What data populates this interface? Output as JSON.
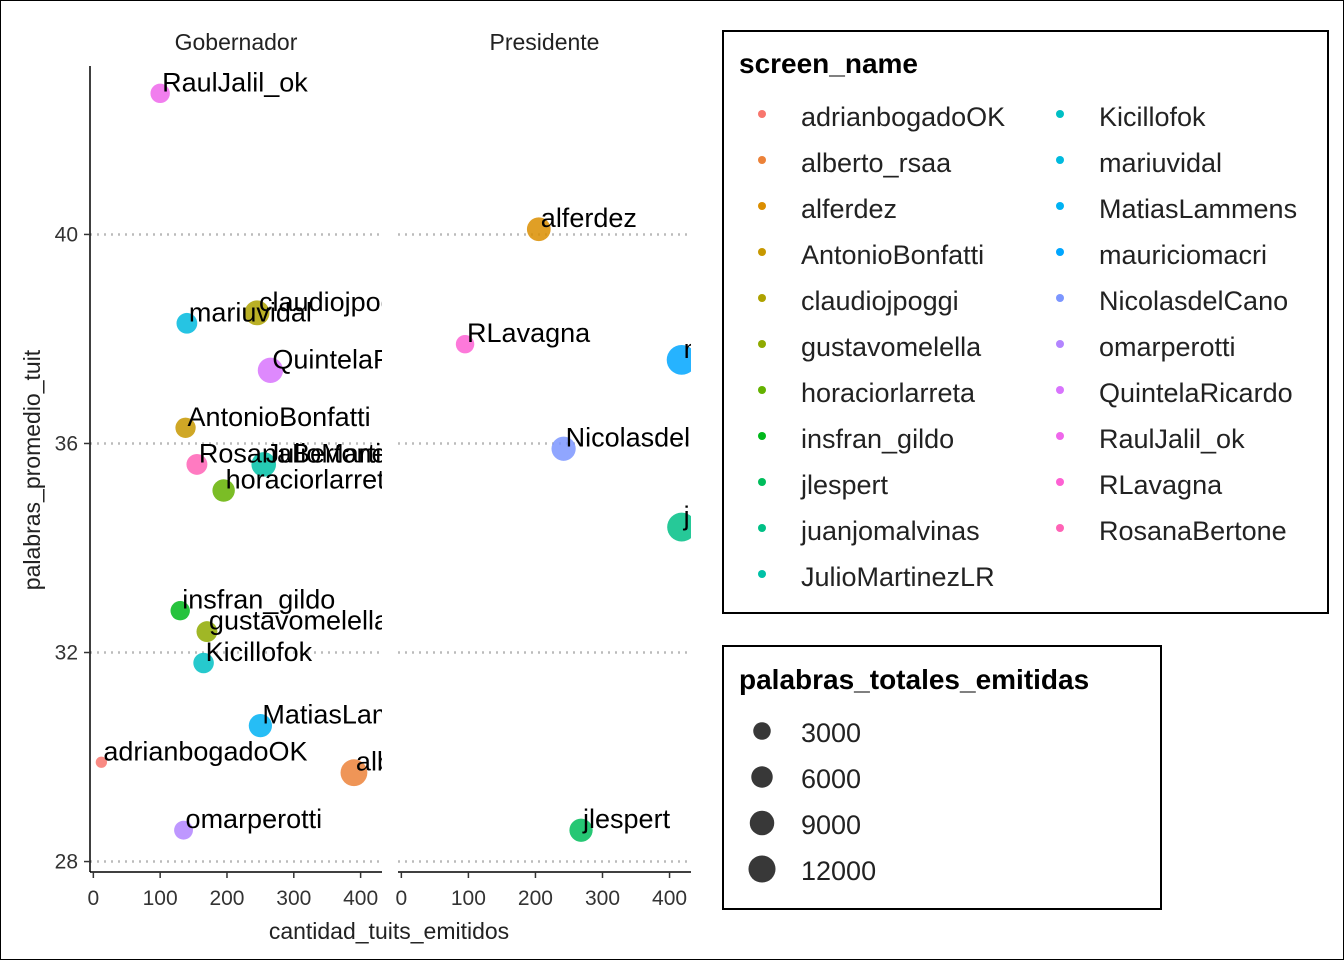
{
  "chart_data": {
    "type": "scatter",
    "xlabel": "cantidad_tuits_emitidos",
    "ylabel": "palabras_promedio_tuit",
    "xlim": [
      -5,
      432
    ],
    "ylim": [
      27.8,
      43.3
    ],
    "x_ticks": [
      0,
      100,
      200,
      300,
      400
    ],
    "x_tick_labels": [
      "0",
      "100",
      "200",
      "300",
      "400"
    ],
    "y_ticks": [
      28,
      32,
      36,
      40
    ],
    "y_tick_labels": [
      "28",
      "32",
      "36",
      "40"
    ],
    "grid": "dotted horizontal major gridlines",
    "facets": [
      "Gobernador",
      "Presidente"
    ],
    "legends": {
      "color": {
        "title": "screen_name",
        "entries": [
          {
            "name": "adrianbogadoOK",
            "color": "#F8766D"
          },
          {
            "name": "alberto_rsaa",
            "color": "#EC8239"
          },
          {
            "name": "alferdez",
            "color": "#DB8E00"
          },
          {
            "name": "AntonioBonfatti",
            "color": "#C79800"
          },
          {
            "name": "claudiojpoggi",
            "color": "#AEA200"
          },
          {
            "name": "gustavomelella",
            "color": "#8FAA00"
          },
          {
            "name": "horaciorlarreta",
            "color": "#64B200"
          },
          {
            "name": "insfran_gildo",
            "color": "#00B81B"
          },
          {
            "name": "jlespert",
            "color": "#00BD5C"
          },
          {
            "name": "juanjomalvinas",
            "color": "#00C086"
          },
          {
            "name": "JulioMartinezLR",
            "color": "#00C1A7"
          },
          {
            "name": "Kicillofok",
            "color": "#00BFC4"
          },
          {
            "name": "mariuvidal",
            "color": "#00BADE"
          },
          {
            "name": "MatiasLammens",
            "color": "#00B2F3"
          },
          {
            "name": "mauriciomacri",
            "color": "#00A6FF"
          },
          {
            "name": "NicolasdelCano",
            "color": "#7C96FF"
          },
          {
            "name": "omarperotti",
            "color": "#B385FF"
          },
          {
            "name": "QuintelaRicardo",
            "color": "#D874FD"
          },
          {
            "name": "RaulJalil_ok",
            "color": "#EF67EB"
          },
          {
            "name": "RLavagna",
            "color": "#FD61D3"
          },
          {
            "name": "RosanaBertone",
            "color": "#FF63B6"
          }
        ]
      },
      "size": {
        "title": "palabras_totales_emitidas",
        "entries": [
          {
            "label": "3000",
            "value": 3000
          },
          {
            "label": "6000",
            "value": 6000
          },
          {
            "label": "9000",
            "value": 9000
          },
          {
            "label": "12000",
            "value": 12000
          }
        ]
      }
    },
    "points": [
      {
        "facet": "Gobernador",
        "screen_name": "RaulJalil_ok",
        "x": 100,
        "y": 42.7,
        "size": 4300
      },
      {
        "facet": "Gobernador",
        "screen_name": "claudiojpoggi",
        "x": 245,
        "y": 38.5,
        "size": 9400
      },
      {
        "facet": "Gobernador",
        "screen_name": "mariuvidal",
        "x": 140,
        "y": 38.3,
        "size": 5400
      },
      {
        "facet": "Gobernador",
        "screen_name": "QuintelaRicardo",
        "x": 265,
        "y": 37.4,
        "size": 9900
      },
      {
        "facet": "Gobernador",
        "screen_name": "AntonioBonfatti",
        "x": 138,
        "y": 36.3,
        "size": 5000
      },
      {
        "facet": "Gobernador",
        "screen_name": "RosanaBertone",
        "x": 155,
        "y": 35.6,
        "size": 5500
      },
      {
        "facet": "Gobernador",
        "screen_name": "JulioMartinezLR",
        "x": 255,
        "y": 35.6,
        "size": 9100
      },
      {
        "facet": "Gobernador",
        "screen_name": "horaciorlarreta",
        "x": 195,
        "y": 35.1,
        "size": 6900
      },
      {
        "facet": "Gobernador",
        "screen_name": "insfran_gildo",
        "x": 130,
        "y": 32.8,
        "size": 4300
      },
      {
        "facet": "Gobernador",
        "screen_name": "gustavomelella",
        "x": 170,
        "y": 32.4,
        "size": 5500
      },
      {
        "facet": "Gobernador",
        "screen_name": "Kicillofok",
        "x": 165,
        "y": 31.8,
        "size": 5200
      },
      {
        "facet": "Gobernador",
        "screen_name": "MatiasLammens",
        "x": 250,
        "y": 30.6,
        "size": 7700
      },
      {
        "facet": "Gobernador",
        "screen_name": "adrianbogadoOK",
        "x": 12,
        "y": 29.9,
        "size": 360
      },
      {
        "facet": "Gobernador",
        "screen_name": "alberto_rsaa",
        "x": 390,
        "y": 29.7,
        "size": 11700
      },
      {
        "facet": "Gobernador",
        "screen_name": "omarperotti",
        "x": 135,
        "y": 28.6,
        "size": 3900
      },
      {
        "facet": "Presidente",
        "screen_name": "alferdez",
        "x": 205,
        "y": 40.1,
        "size": 8200
      },
      {
        "facet": "Presidente",
        "screen_name": "RLavagna",
        "x": 95,
        "y": 37.9,
        "size": 3600
      },
      {
        "facet": "Presidente",
        "screen_name": "mauriciomacri",
        "x": 418,
        "y": 37.6,
        "size": 15700
      },
      {
        "facet": "Presidente",
        "screen_name": "NicolasdelCano",
        "x": 242,
        "y": 35.9,
        "size": 8700
      },
      {
        "facet": "Presidente",
        "screen_name": "juanjomalvinas",
        "x": 418,
        "y": 34.4,
        "size": 14400
      },
      {
        "facet": "Presidente",
        "screen_name": "jlespert",
        "x": 268,
        "y": 28.6,
        "size": 7700
      }
    ]
  }
}
